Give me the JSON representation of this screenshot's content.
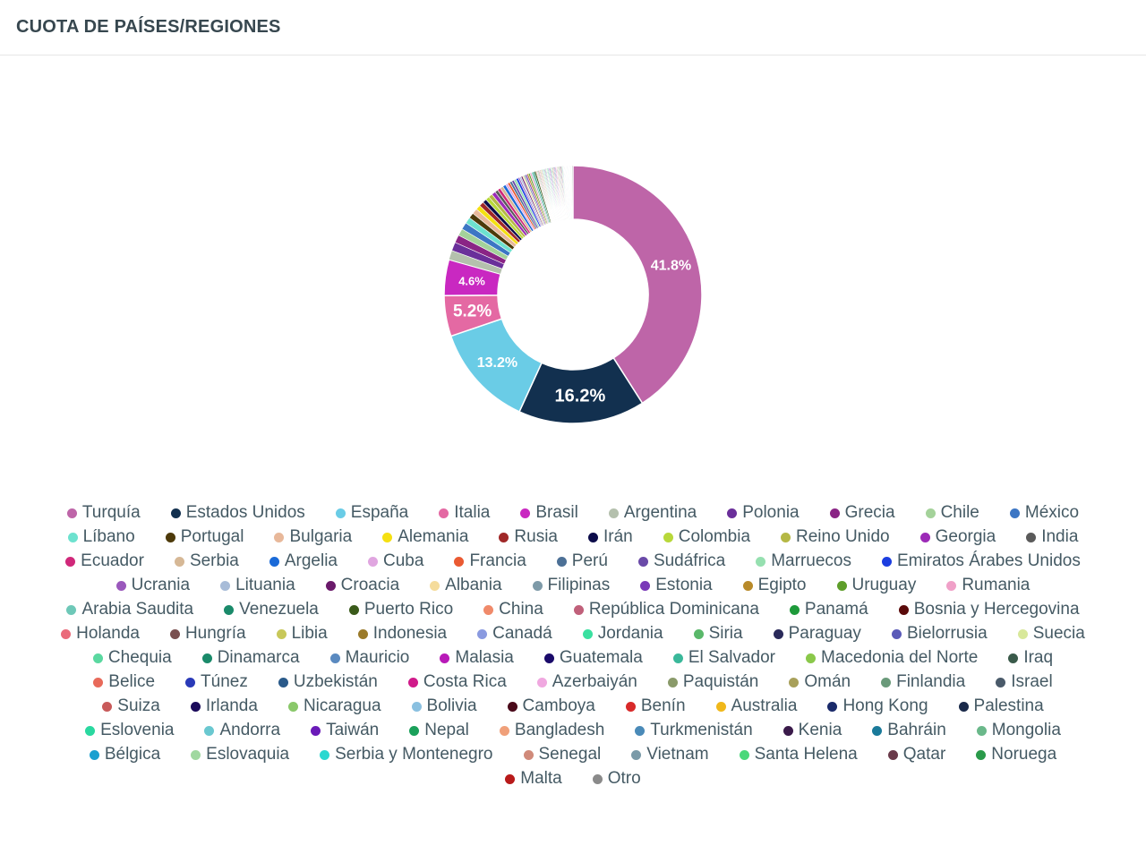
{
  "header": {
    "title": "CUOTA DE PAÍSES/REGIONES"
  },
  "chart_data": {
    "type": "pie",
    "variant": "donut",
    "legend_position": "bottom",
    "data_labels": [
      "41.8%",
      "16.2%",
      "13.2%",
      "5.2%",
      "4.6%"
    ],
    "series": [
      {
        "name": "Turquía",
        "value": 41.8,
        "color": "#be65a8"
      },
      {
        "name": "Estados Unidos",
        "value": 16.2,
        "color": "#12304f"
      },
      {
        "name": "España",
        "value": 13.2,
        "color": "#6acce6"
      },
      {
        "name": "Italia",
        "value": 5.2,
        "color": "#e469a3"
      },
      {
        "name": "Brasil",
        "value": 4.6,
        "color": "#c928c1"
      },
      {
        "name": "Argentina",
        "value": 1.2,
        "color": "#b4c0ad"
      },
      {
        "name": "Polonia",
        "value": 1.1,
        "color": "#6a2f9a"
      },
      {
        "name": "Grecia",
        "value": 1.0,
        "color": "#8a2485"
      },
      {
        "name": "Chile",
        "value": 0.9,
        "color": "#a4d29a"
      },
      {
        "name": "México",
        "value": 0.9,
        "color": "#3c76c4"
      },
      {
        "name": "Líbano",
        "value": 0.8,
        "color": "#6de2cf"
      },
      {
        "name": "Portugal",
        "value": 0.7,
        "color": "#4d3a0a"
      },
      {
        "name": "Bulgaria",
        "value": 0.7,
        "color": "#e8b89a"
      },
      {
        "name": "Alemania",
        "value": 0.6,
        "color": "#f5e012"
      },
      {
        "name": "Rusia",
        "value": 0.6,
        "color": "#a02828"
      },
      {
        "name": "Irán",
        "value": 0.5,
        "color": "#0c0c4a"
      },
      {
        "name": "Colombia",
        "value": 0.5,
        "color": "#b8d83a"
      },
      {
        "name": "Reino Unido",
        "value": 0.5,
        "color": "#b5b845"
      },
      {
        "name": "Georgia",
        "value": 0.5,
        "color": "#9c2ab7"
      },
      {
        "name": "India",
        "value": 0.4,
        "color": "#5a5a5a"
      },
      {
        "name": "Ecuador",
        "value": 0.4,
        "color": "#d0287a"
      },
      {
        "name": "Serbia",
        "value": 0.4,
        "color": "#d6b896"
      },
      {
        "name": "Argelia",
        "value": 0.4,
        "color": "#1a6ad8"
      },
      {
        "name": "Cuba",
        "value": 0.3,
        "color": "#e0a6e0"
      },
      {
        "name": "Francia",
        "value": 0.3,
        "color": "#ea5a32"
      },
      {
        "name": "Perú",
        "value": 0.3,
        "color": "#4c7096"
      },
      {
        "name": "Sudáfrica",
        "value": 0.3,
        "color": "#6a4aa8"
      },
      {
        "name": "Marruecos",
        "value": 0.3,
        "color": "#96e0b0"
      },
      {
        "name": "Emiratos Árabes Unidos",
        "value": 0.3,
        "color": "#1c3ee0"
      },
      {
        "name": "Ucrania",
        "value": 0.2,
        "color": "#9a58bc"
      },
      {
        "name": "Lituania",
        "value": 0.2,
        "color": "#a8bcd8"
      },
      {
        "name": "Croacia",
        "value": 0.2,
        "color": "#6a1a6a"
      },
      {
        "name": "Albania",
        "value": 0.2,
        "color": "#f5dc9c"
      },
      {
        "name": "Filipinas",
        "value": 0.2,
        "color": "#7e9aa8"
      },
      {
        "name": "Estonia",
        "value": 0.2,
        "color": "#7a3ab8"
      },
      {
        "name": "Egipto",
        "value": 0.2,
        "color": "#b88a2a"
      },
      {
        "name": "Uruguay",
        "value": 0.2,
        "color": "#5e9e2a"
      },
      {
        "name": "Rumania",
        "value": 0.2,
        "color": "#f0a0c8"
      },
      {
        "name": "Arabia Saudita",
        "value": 0.2,
        "color": "#6ec8b8"
      },
      {
        "name": "Venezuela",
        "value": 0.2,
        "color": "#1a8a6a"
      },
      {
        "name": "Puerto Rico",
        "value": 0.2,
        "color": "#3a5a1a"
      },
      {
        "name": "China",
        "value": 0.1,
        "color": "#f08a6a"
      },
      {
        "name": "República Dominicana",
        "value": 0.1,
        "color": "#c0607a"
      },
      {
        "name": "Panamá",
        "value": 0.1,
        "color": "#1e9a3a"
      },
      {
        "name": "Bosnia y Hercegovina",
        "value": 0.1,
        "color": "#5a0a0a"
      },
      {
        "name": "Holanda",
        "value": 0.1,
        "color": "#ea6a7a"
      },
      {
        "name": "Hungría",
        "value": 0.1,
        "color": "#7a5050"
      },
      {
        "name": "Libia",
        "value": 0.1,
        "color": "#c8c85a"
      },
      {
        "name": "Indonesia",
        "value": 0.1,
        "color": "#9a7a2a"
      },
      {
        "name": "Canadá",
        "value": 0.1,
        "color": "#8a9ae0"
      },
      {
        "name": "Jordania",
        "value": 0.1,
        "color": "#3ae0a0"
      },
      {
        "name": "Siria",
        "value": 0.1,
        "color": "#5ab86a"
      },
      {
        "name": "Paraguay",
        "value": 0.1,
        "color": "#2a2a5a"
      },
      {
        "name": "Bielorrusia",
        "value": 0.1,
        "color": "#5a5ab8"
      },
      {
        "name": "Suecia",
        "value": 0.1,
        "color": "#d8e89a"
      },
      {
        "name": "Chequia",
        "value": 0.1,
        "color": "#5ad8a0"
      },
      {
        "name": "Dinamarca",
        "value": 0.1,
        "color": "#1a8a6a"
      },
      {
        "name": "Mauricio",
        "value": 0.1,
        "color": "#5a8ac0"
      },
      {
        "name": "Malasia",
        "value": 0.1,
        "color": "#b81ab8"
      },
      {
        "name": "Guatemala",
        "value": 0.1,
        "color": "#1a0a6a"
      },
      {
        "name": "El Salvador",
        "value": 0.1,
        "color": "#3ab89a"
      },
      {
        "name": "Macedonia del Norte",
        "value": 0.1,
        "color": "#8ac84a"
      },
      {
        "name": "Iraq",
        "value": 0.1,
        "color": "#3a5a4a"
      },
      {
        "name": "Belice",
        "value": 0.1,
        "color": "#e86a5a"
      },
      {
        "name": "Túnez",
        "value": 0.1,
        "color": "#2a3ab8"
      },
      {
        "name": "Uzbekistán",
        "value": 0.1,
        "color": "#2a5a8a"
      },
      {
        "name": "Costa Rica",
        "value": 0.1,
        "color": "#d01a8a"
      },
      {
        "name": "Azerbaiyán",
        "value": 0.1,
        "color": "#f0a8e0"
      },
      {
        "name": "Paquistán",
        "value": 0.1,
        "color": "#8a9a6a"
      },
      {
        "name": "Omán",
        "value": 0.1,
        "color": "#a8a05a"
      },
      {
        "name": "Finlandia",
        "value": 0.1,
        "color": "#6a9a7a"
      },
      {
        "name": "Israel",
        "value": 0.1,
        "color": "#4a5a6a"
      },
      {
        "name": "Suiza",
        "value": 0.1,
        "color": "#c85a5a"
      },
      {
        "name": "Irlanda",
        "value": 0.1,
        "color": "#1a0a5a"
      },
      {
        "name": "Nicaragua",
        "value": 0.1,
        "color": "#8ac86a"
      },
      {
        "name": "Bolivia",
        "value": 0.1,
        "color": "#8ac0e0"
      },
      {
        "name": "Camboya",
        "value": 0.05,
        "color": "#4a0a1a"
      },
      {
        "name": "Benín",
        "value": 0.05,
        "color": "#d82a2a"
      },
      {
        "name": "Australia",
        "value": 0.05,
        "color": "#f0b81a"
      },
      {
        "name": "Hong Kong",
        "value": 0.05,
        "color": "#1a2a6a"
      },
      {
        "name": "Palestina",
        "value": 0.05,
        "color": "#1a2a4a"
      },
      {
        "name": "Eslovenia",
        "value": 0.05,
        "color": "#2ad8a0"
      },
      {
        "name": "Andorra",
        "value": 0.05,
        "color": "#6ac8d0"
      },
      {
        "name": "Taiwán",
        "value": 0.05,
        "color": "#6a1ab8"
      },
      {
        "name": "Nepal",
        "value": 0.05,
        "color": "#1aa05a"
      },
      {
        "name": "Bangladesh",
        "value": 0.05,
        "color": "#f0a07a"
      },
      {
        "name": "Turkmenistán",
        "value": 0.05,
        "color": "#4a8ab8"
      },
      {
        "name": "Kenia",
        "value": 0.05,
        "color": "#3a1a4a"
      },
      {
        "name": "Bahráin",
        "value": 0.05,
        "color": "#1a7a9a"
      },
      {
        "name": "Mongolia",
        "value": 0.05,
        "color": "#6ab88a"
      },
      {
        "name": "Bélgica",
        "value": 0.05,
        "color": "#1aa0d0"
      },
      {
        "name": "Eslovaquia",
        "value": 0.05,
        "color": "#a0d8a0"
      },
      {
        "name": "Serbia y Montenegro",
        "value": 0.05,
        "color": "#2ad8d0"
      },
      {
        "name": "Senegal",
        "value": 0.05,
        "color": "#d08a7a"
      },
      {
        "name": "Vietnam",
        "value": 0.05,
        "color": "#7a9aa8"
      },
      {
        "name": "Santa Helena",
        "value": 0.05,
        "color": "#4ad87a"
      },
      {
        "name": "Qatar",
        "value": 0.05,
        "color": "#6a3a4a"
      },
      {
        "name": "Noruega",
        "value": 0.05,
        "color": "#2a9a4a"
      },
      {
        "name": "Malta",
        "value": 0.05,
        "color": "#b81a1a"
      },
      {
        "name": "Otro",
        "value": 0.1,
        "color": "#8a8a8a"
      }
    ]
  }
}
